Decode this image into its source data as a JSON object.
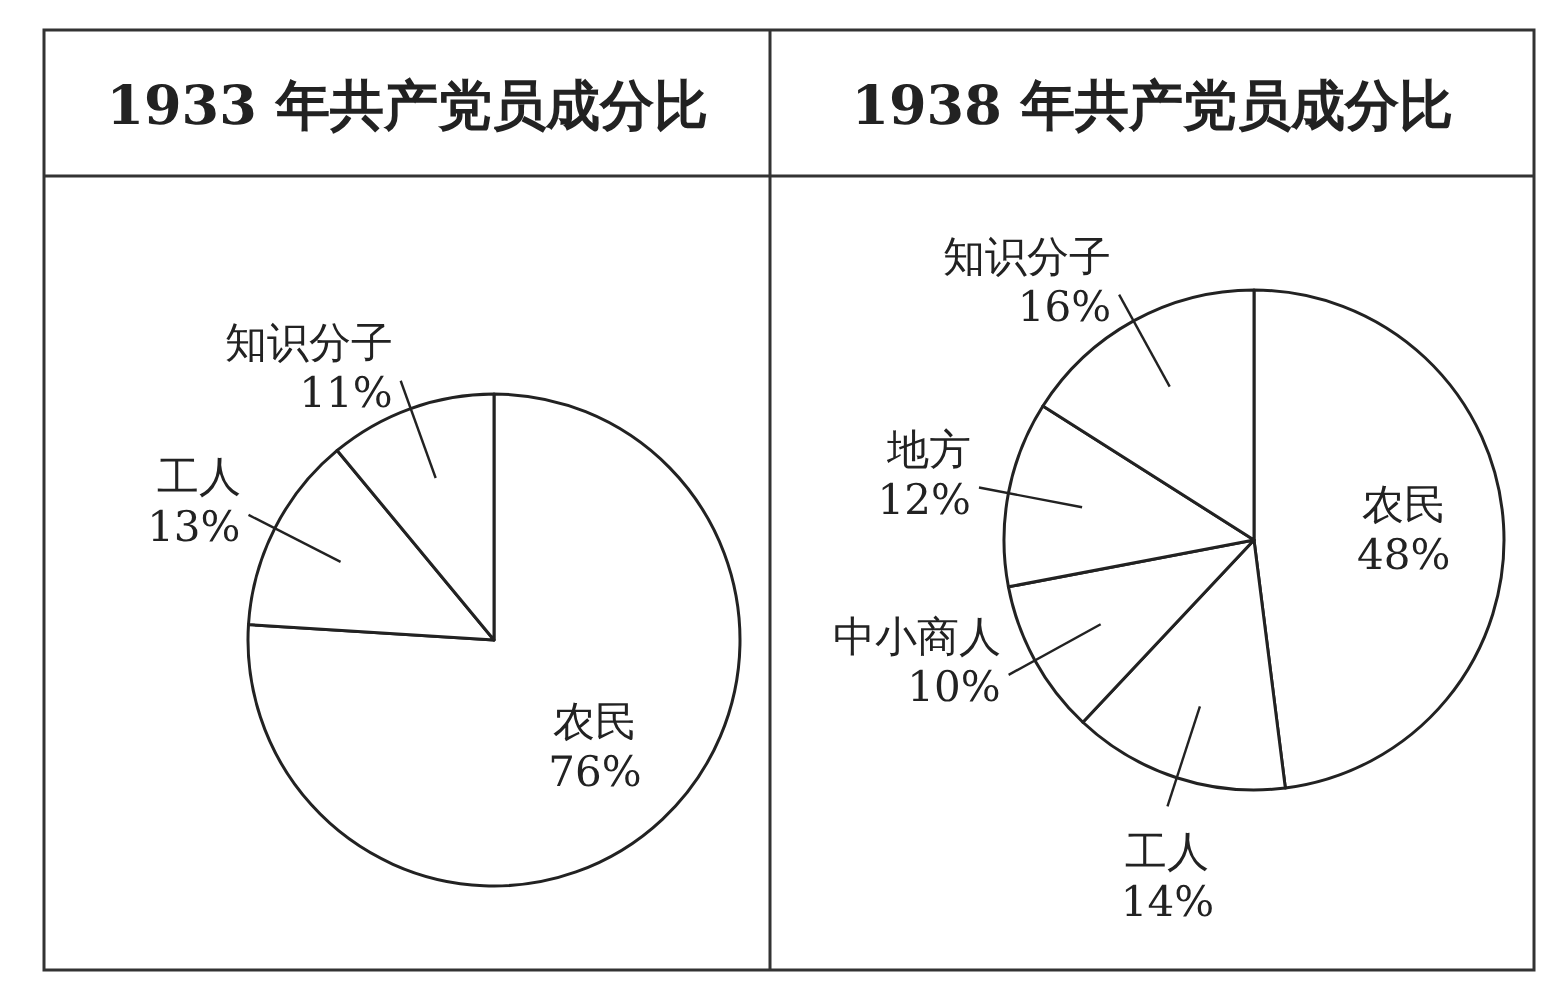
{
  "chart_data": [
    {
      "type": "pie",
      "title": "1933 年共产党员成分比",
      "categories": [
        "农民",
        "工人",
        "知识分子"
      ],
      "values": [
        76,
        13,
        11
      ],
      "value_labels": [
        "76%",
        "13%",
        "11%"
      ],
      "colors": [
        "#ffffff",
        "#ffffff",
        "#ffffff"
      ],
      "legend": false
    },
    {
      "type": "pie",
      "title": "1938 年共产党员成分比",
      "categories": [
        "农民",
        "工人",
        "中小商人",
        "地方",
        "知识分子"
      ],
      "values": [
        48,
        14,
        10,
        12,
        16
      ],
      "value_labels": [
        "48%",
        "14%",
        "10%",
        "12%",
        "16%"
      ],
      "colors": [
        "#ffffff",
        "#ffffff",
        "#ffffff",
        "#ffffff",
        "#ffffff"
      ],
      "legend": false
    }
  ]
}
